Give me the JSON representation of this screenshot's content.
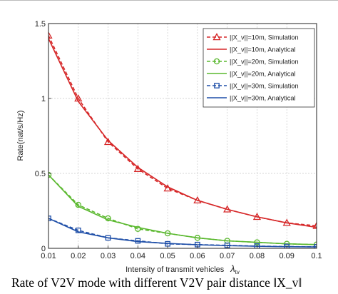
{
  "chart_data": {
    "type": "line",
    "xlabel": "Intensity of transmit vehicles",
    "xlabel_symbol": "λ",
    "xlabel_subscript": "tv",
    "ylabel": "Rate(nat/s/Hz)",
    "xlim": [
      0.01,
      0.1
    ],
    "ylim": [
      0,
      1.5
    ],
    "xticks": [
      "0.01",
      "0.02",
      "0.03",
      "0.04",
      "0.05",
      "0.06",
      "0.07",
      "0.08",
      "0.09",
      "0.1"
    ],
    "yticks": [
      {
        "value": 0,
        "label": "0"
      },
      {
        "value": 0.5,
        "label": "0.5"
      },
      {
        "value": 1,
        "label": "1"
      },
      {
        "value": 1.5,
        "label": "1.5"
      }
    ],
    "grid": true,
    "legend_position": "top-right",
    "x": [
      0.01,
      0.02,
      0.03,
      0.04,
      0.05,
      0.06,
      0.07,
      0.08,
      0.09,
      0.1
    ],
    "series": [
      {
        "name": "||X_v||=10m, Simulation",
        "color": "#d62728",
        "style": "dashed",
        "marker": "triangle",
        "values": [
          1.42,
          1.0,
          0.71,
          0.53,
          0.4,
          0.32,
          0.26,
          0.21,
          0.17,
          0.15
        ]
      },
      {
        "name": "||X_v||=10m, Analytical",
        "color": "#d62728",
        "style": "solid",
        "marker": "none",
        "values": [
          1.4,
          0.98,
          0.72,
          0.54,
          0.41,
          0.32,
          0.26,
          0.21,
          0.17,
          0.14
        ]
      },
      {
        "name": "||X_v||=20m, Simulation",
        "color": "#5ab82e",
        "style": "dashed",
        "marker": "circle",
        "values": [
          0.49,
          0.29,
          0.2,
          0.13,
          0.1,
          0.07,
          0.05,
          0.04,
          0.03,
          0.025
        ]
      },
      {
        "name": "||X_v||=20m, Analytical",
        "color": "#5ab82e",
        "style": "solid",
        "marker": "none",
        "values": [
          0.49,
          0.28,
          0.19,
          0.14,
          0.1,
          0.07,
          0.05,
          0.04,
          0.03,
          0.025
        ]
      },
      {
        "name": "||X_v||=30m, Simulation",
        "color": "#1f4fa8",
        "style": "dashed",
        "marker": "square",
        "values": [
          0.2,
          0.12,
          0.07,
          0.05,
          0.03,
          0.025,
          0.02,
          0.015,
          0.012,
          0.01
        ]
      },
      {
        "name": "||X_v||=30m, Analytical",
        "color": "#1f4fa8",
        "style": "solid",
        "marker": "none",
        "values": [
          0.2,
          0.11,
          0.07,
          0.045,
          0.033,
          0.024,
          0.018,
          0.014,
          0.011,
          0.009
        ]
      }
    ]
  },
  "caption": "Rate of V2V mode with different V2V pair distance ‖X_v‖"
}
